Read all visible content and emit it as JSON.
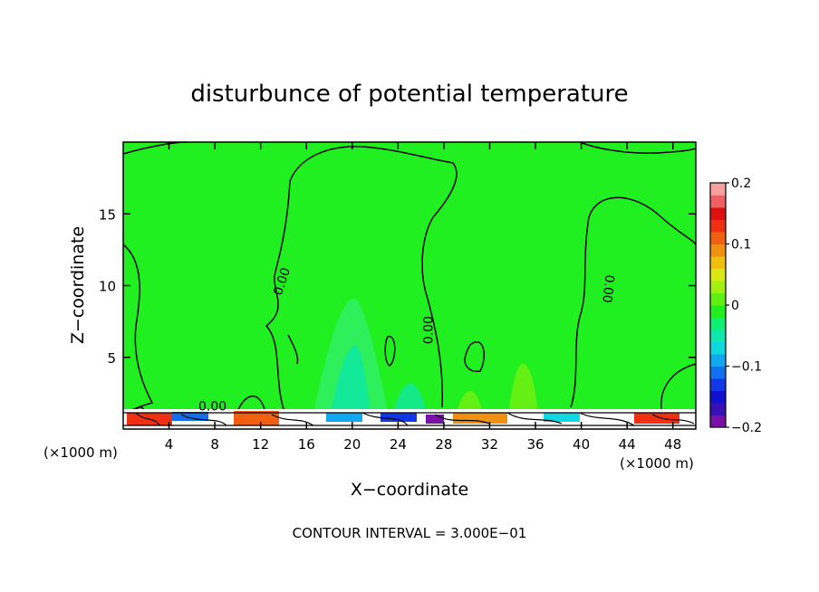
{
  "chart_data": {
    "type": "heatmap",
    "title": "disturbunce of potential temperature",
    "xlabel": "X−coordinate",
    "ylabel": "Z−coordinate",
    "x_unit_left": "(×1000 m)",
    "x_unit_right": "(×1000 m)",
    "footer": "CONTOUR INTERVAL = 3.000E−01",
    "xlim": [
      0,
      50
    ],
    "ylim": [
      0,
      20
    ],
    "x_ticks": [
      4,
      8,
      12,
      16,
      20,
      24,
      28,
      32,
      36,
      40,
      44,
      48
    ],
    "y_ticks": [
      5,
      10,
      15
    ],
    "colorbar": {
      "min": -0.2,
      "max": 0.2,
      "tick_values": [
        0.2,
        0.1,
        0,
        -0.1,
        -0.2
      ],
      "tick_labels": [
        "0.2",
        "0.1",
        "0",
        "−0.1",
        "−0.2"
      ],
      "colors": [
        "#7a10a8",
        "#3810b8",
        "#1010d0",
        "#1038e8",
        "#1070f0",
        "#10a8f0",
        "#10d8e0",
        "#10e8b0",
        "#10f070",
        "#20f020",
        "#60f010",
        "#a0f010",
        "#d8e810",
        "#f0c010",
        "#f09010",
        "#f06010",
        "#f03010",
        "#e01010",
        "#f06060",
        "#f8a0a0"
      ]
    },
    "contour_labels": [
      {
        "x": 14.2,
        "y": 10.2,
        "text": "0.00",
        "rotate": -72
      },
      {
        "x": 27.0,
        "y": 6.9,
        "text": "0.00",
        "rotate": -90
      },
      {
        "x": 42.0,
        "y": 9.8,
        "text": "0.00",
        "rotate": 96
      },
      {
        "x": 7.8,
        "y": 1.3,
        "text": "0.00",
        "rotate": 0
      }
    ],
    "background_value": 0.0
  }
}
